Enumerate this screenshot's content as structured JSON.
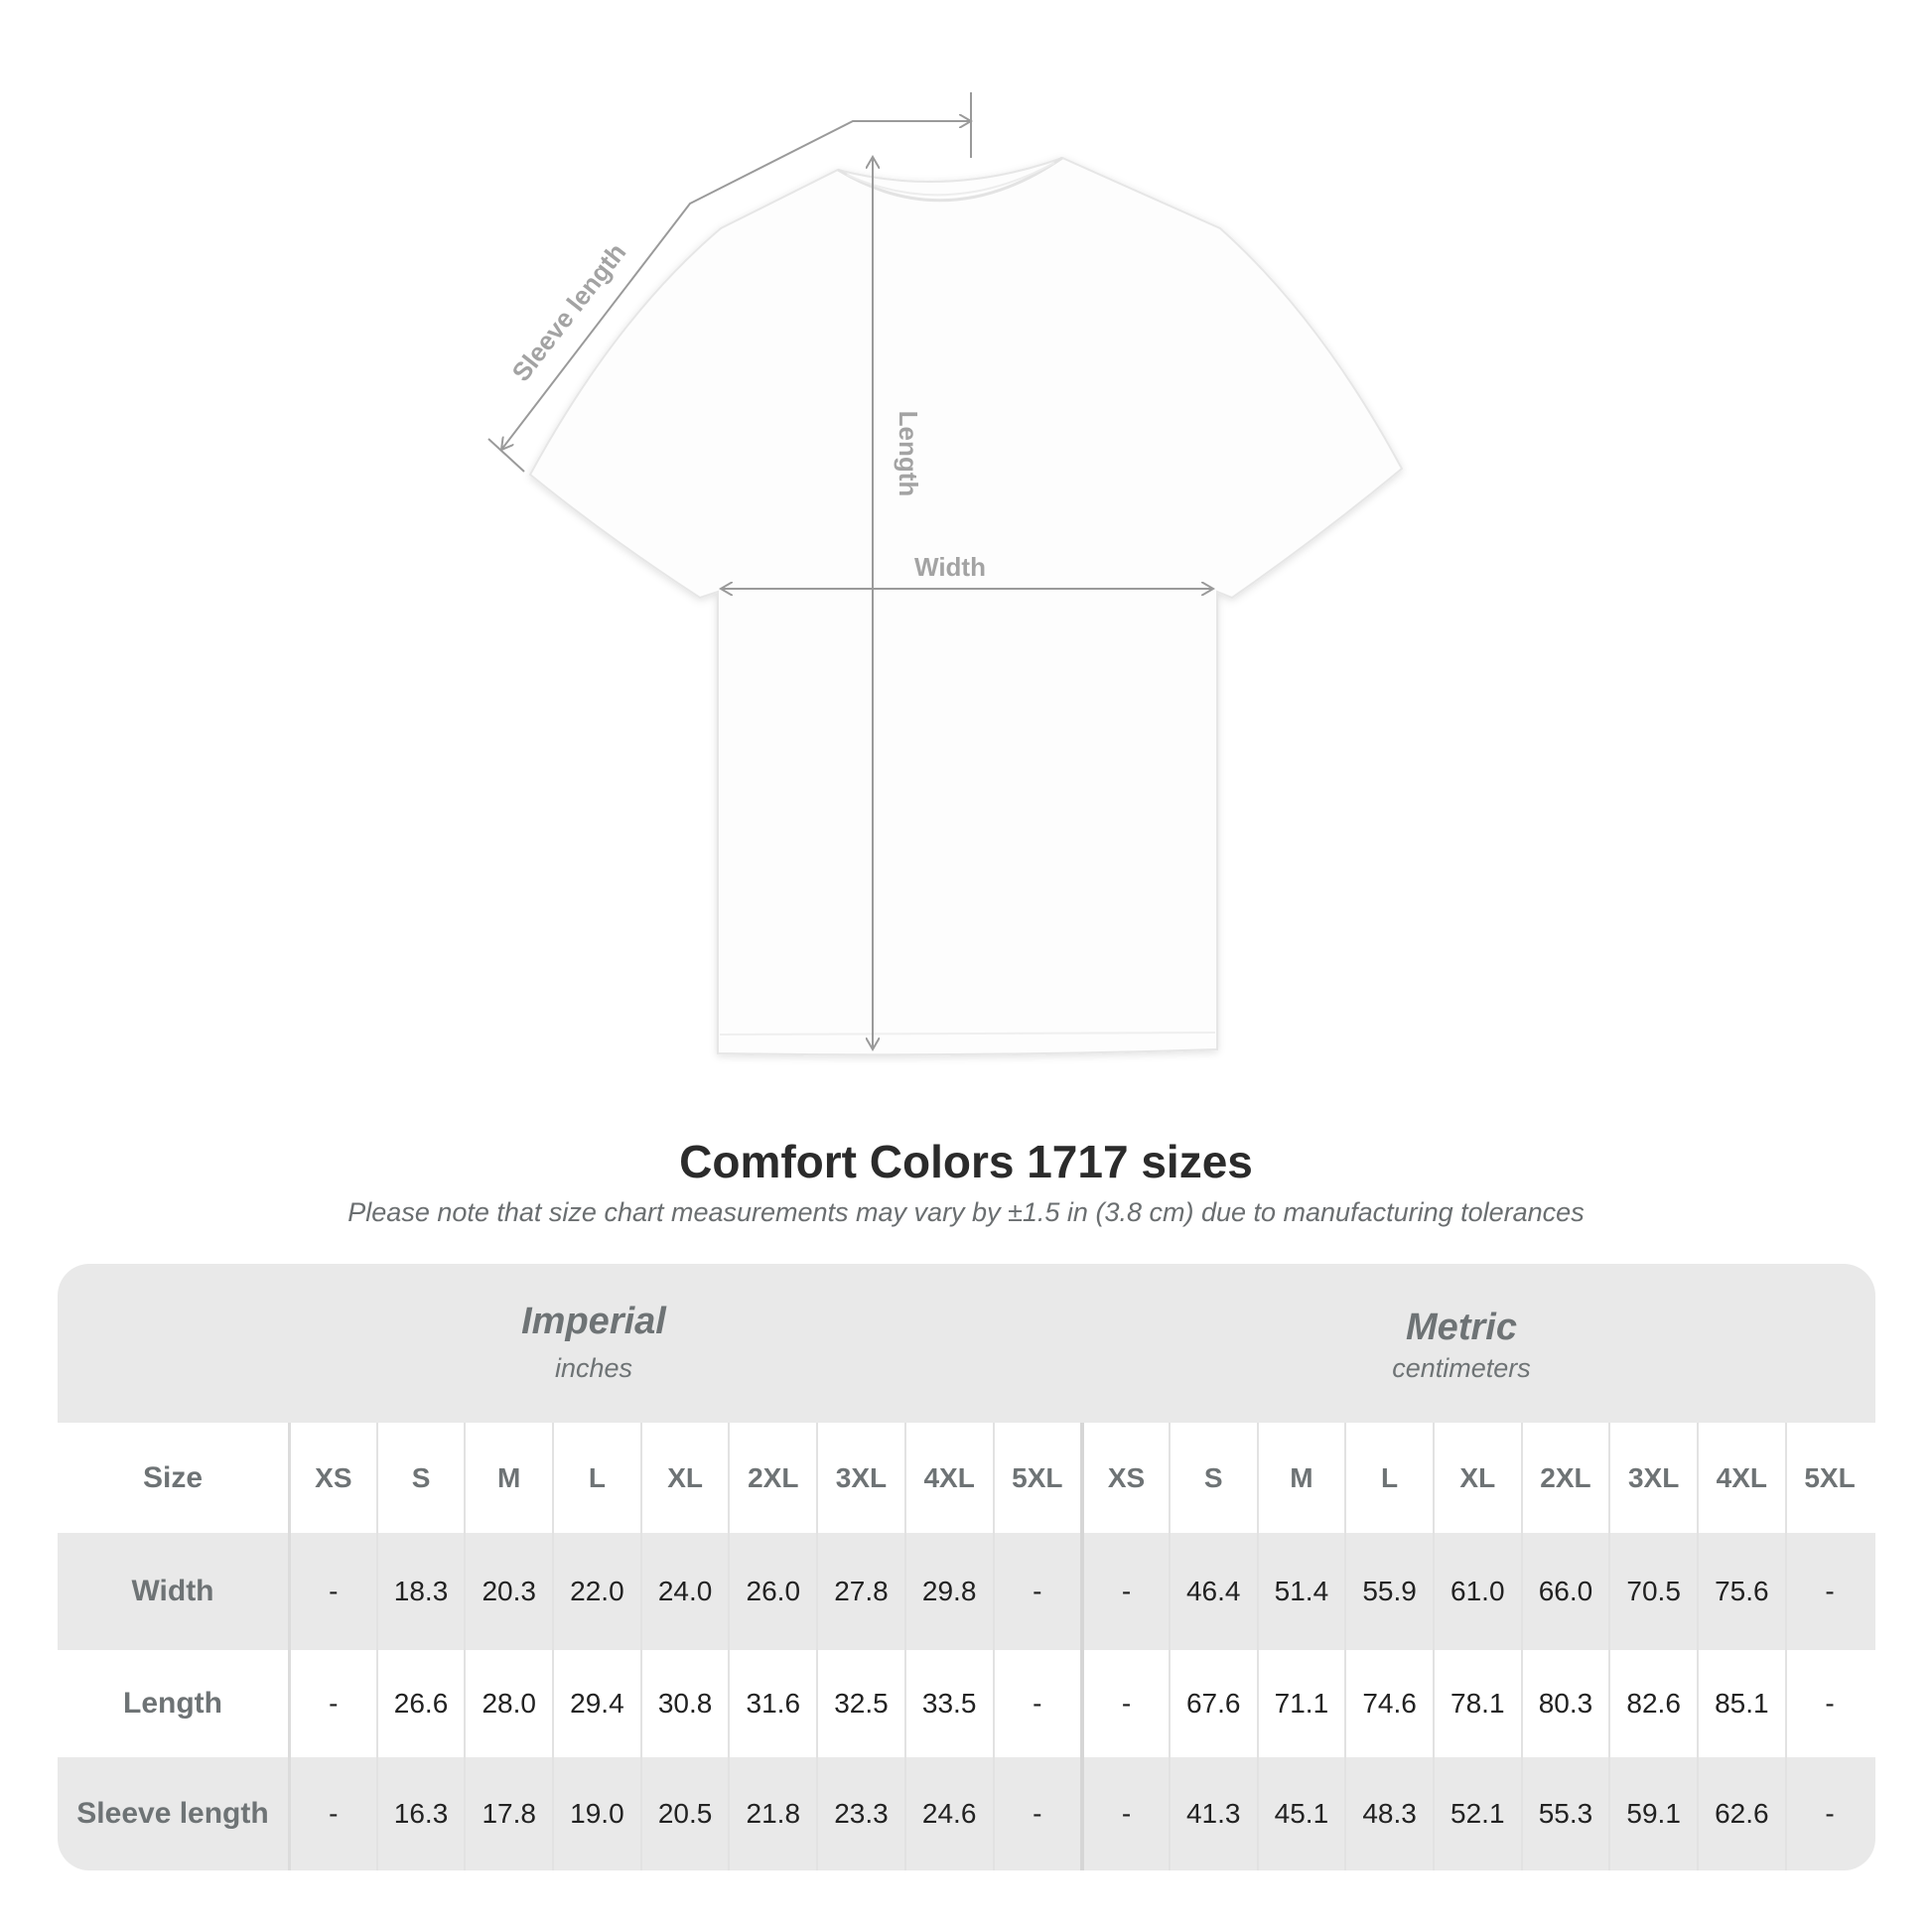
{
  "diagram": {
    "labels": {
      "sleeve": "Sleeve length",
      "length": "Length",
      "width": "Width"
    }
  },
  "title": "Comfort Colors 1717 sizes",
  "subtitle": "Please note that size chart measurements may vary by ±1.5 in (3.8 cm) due to manufacturing tolerances",
  "table": {
    "imperial": {
      "name": "Imperial",
      "unit": "inches"
    },
    "metric": {
      "name": "Metric",
      "unit": "centimeters"
    },
    "size_label": "Size",
    "sizes": [
      "XS",
      "S",
      "M",
      "L",
      "XL",
      "2XL",
      "3XL",
      "4XL",
      "5XL"
    ],
    "rows": [
      {
        "label": "Width",
        "imperial": [
          "-",
          "18.3",
          "20.3",
          "22.0",
          "24.0",
          "26.0",
          "27.8",
          "29.8",
          "-"
        ],
        "metric": [
          "-",
          "46.4",
          "51.4",
          "55.9",
          "61.0",
          "66.0",
          "70.5",
          "75.6",
          "-"
        ]
      },
      {
        "label": "Length",
        "imperial": [
          "-",
          "26.6",
          "28.0",
          "29.4",
          "30.8",
          "31.6",
          "32.5",
          "33.5",
          "-"
        ],
        "metric": [
          "-",
          "67.6",
          "71.1",
          "74.6",
          "78.1",
          "80.3",
          "82.6",
          "85.1",
          "-"
        ]
      },
      {
        "label": "Sleeve length",
        "imperial": [
          "-",
          "16.3",
          "17.8",
          "19.0",
          "20.5",
          "21.8",
          "23.3",
          "24.6",
          "-"
        ],
        "metric": [
          "-",
          "41.3",
          "45.1",
          "48.3",
          "52.1",
          "55.3",
          "59.1",
          "62.6",
          "-"
        ]
      }
    ]
  },
  "colors": {
    "band": "#e9e9e9",
    "header_text": "#6e7375",
    "measure_line": "#9a9a9a"
  }
}
